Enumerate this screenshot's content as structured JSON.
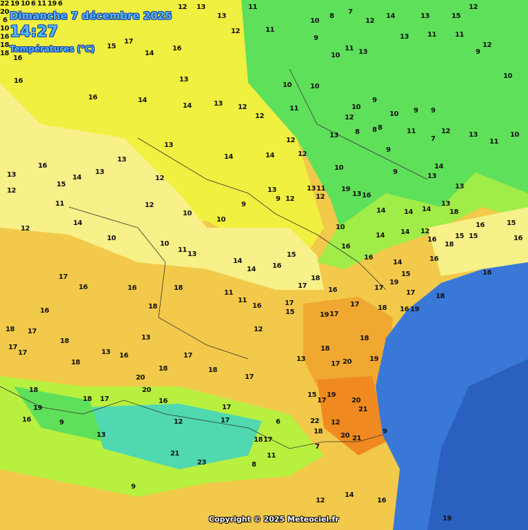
{
  "header": {
    "date": "Dimanche 7 décembre 2025",
    "time": "14:27",
    "variable": "Températures (°C)"
  },
  "copyright": "Copyright © 2025 Meteociel.fr",
  "colors": {
    "t10": "#5fe05a",
    "t12": "#b8f040",
    "t14": "#f0f040",
    "t16": "#f8f088",
    "t18": "#f2c94a",
    "t20": "#f0a830",
    "t22": "#f08a20",
    "sea": "#3a78d8",
    "deepsea": "#2a60c0",
    "mountain": "#50d8b0"
  },
  "stations": [
    12,
    13,
    13,
    12,
    11,
    11,
    10,
    8,
    7,
    12,
    14,
    13,
    15,
    12,
    9,
    10,
    13,
    11,
    13,
    11,
    11,
    12,
    10,
    9,
    10,
    10,
    16,
    14,
    17,
    15,
    16,
    14,
    13,
    13,
    12,
    14,
    12,
    11,
    10,
    9,
    12,
    10,
    9,
    9,
    8,
    11,
    12,
    13,
    11,
    10,
    16,
    16,
    13,
    14,
    13,
    15,
    13,
    12,
    12,
    10,
    8,
    8,
    7,
    9,
    9,
    12,
    13,
    14,
    14,
    13,
    12,
    13,
    12,
    19,
    16,
    14,
    14,
    14,
    13,
    13,
    13,
    14,
    13,
    12,
    11,
    12,
    10,
    9,
    10,
    9,
    10,
    11,
    13,
    14,
    14,
    12,
    18,
    16,
    15,
    15,
    16,
    15,
    16,
    12,
    14,
    10,
    10,
    11,
    13,
    14,
    16,
    15,
    16,
    16,
    14,
    15,
    16,
    18,
    16,
    17,
    16,
    16,
    18,
    18,
    14,
    11,
    11,
    16,
    17,
    18,
    19,
    17,
    16,
    17,
    17,
    17,
    18,
    18,
    17,
    17,
    16,
    18,
    13,
    13,
    17,
    15,
    12,
    19,
    17,
    18,
    16,
    19,
    18,
    18,
    17,
    20,
    16,
    18,
    17,
    13,
    17,
    18,
    20,
    19,
    18,
    18,
    19,
    18,
    17,
    16,
    17,
    17,
    18,
    15,
    17,
    19,
    20,
    21,
    16,
    9,
    13,
    12,
    17,
    6,
    18,
    9,
    12,
    20,
    21,
    22,
    21,
    23,
    8,
    11,
    7,
    9,
    12,
    14,
    16,
    19,
    20,
    22,
    20,
    19,
    6,
    10,
    10,
    6,
    16,
    11,
    18,
    19,
    18,
    16,
    6
  ]
}
